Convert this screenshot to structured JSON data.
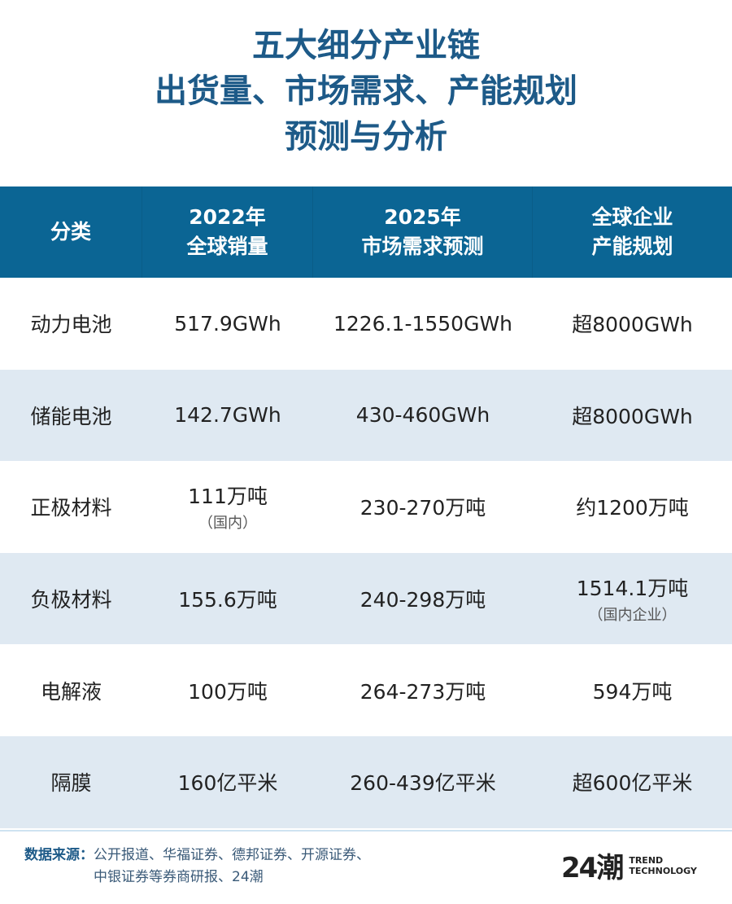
{
  "title": {
    "line1": "五大细分产业链",
    "line2": "出货量、市场需求、产能规划",
    "line3": "预测与分析"
  },
  "colors": {
    "title": "#1d5a88",
    "header_bg": "#0b6594",
    "alt_row": "#dfe9f2"
  },
  "table": {
    "headers": [
      {
        "line1": "分类",
        "line2": ""
      },
      {
        "line1": "2022年",
        "line2": "全球销量"
      },
      {
        "line1": "2025年",
        "line2": "市场需求预测"
      },
      {
        "line1": "全球企业",
        "line2": "产能规划"
      }
    ],
    "rows": [
      {
        "category": "动力电池",
        "sales": "517.9GWh",
        "sales_note": "",
        "demand": "1226.1-1550GWh",
        "capacity": "超8000GWh",
        "capacity_note": ""
      },
      {
        "category": "储能电池",
        "sales": "142.7GWh",
        "sales_note": "",
        "demand": "430-460GWh",
        "capacity": "超8000GWh",
        "capacity_note": ""
      },
      {
        "category": "正极材料",
        "sales": "111万吨",
        "sales_note": "（国内）",
        "demand": "230-270万吨",
        "capacity": "约1200万吨",
        "capacity_note": ""
      },
      {
        "category": "负极材料",
        "sales": "155.6万吨",
        "sales_note": "",
        "demand": "240-298万吨",
        "capacity": "1514.1万吨",
        "capacity_note": "（国内企业）"
      },
      {
        "category": "电解液",
        "sales": "100万吨",
        "sales_note": "",
        "demand": "264-273万吨",
        "capacity": "594万吨",
        "capacity_note": ""
      },
      {
        "category": "隔膜",
        "sales": "160亿平米",
        "sales_note": "",
        "demand": "260-439亿平米",
        "capacity": "超600亿平米",
        "capacity_note": ""
      }
    ]
  },
  "footer": {
    "source_label": "数据来源：",
    "source_line1": "公开报道、华福证券、德邦证券、开源证券、",
    "source_line2": "中银证券等券商研报、24潮",
    "logo_mark": "24潮",
    "logo_line1": "TREND",
    "logo_line2": "TECHNOLOGY"
  }
}
